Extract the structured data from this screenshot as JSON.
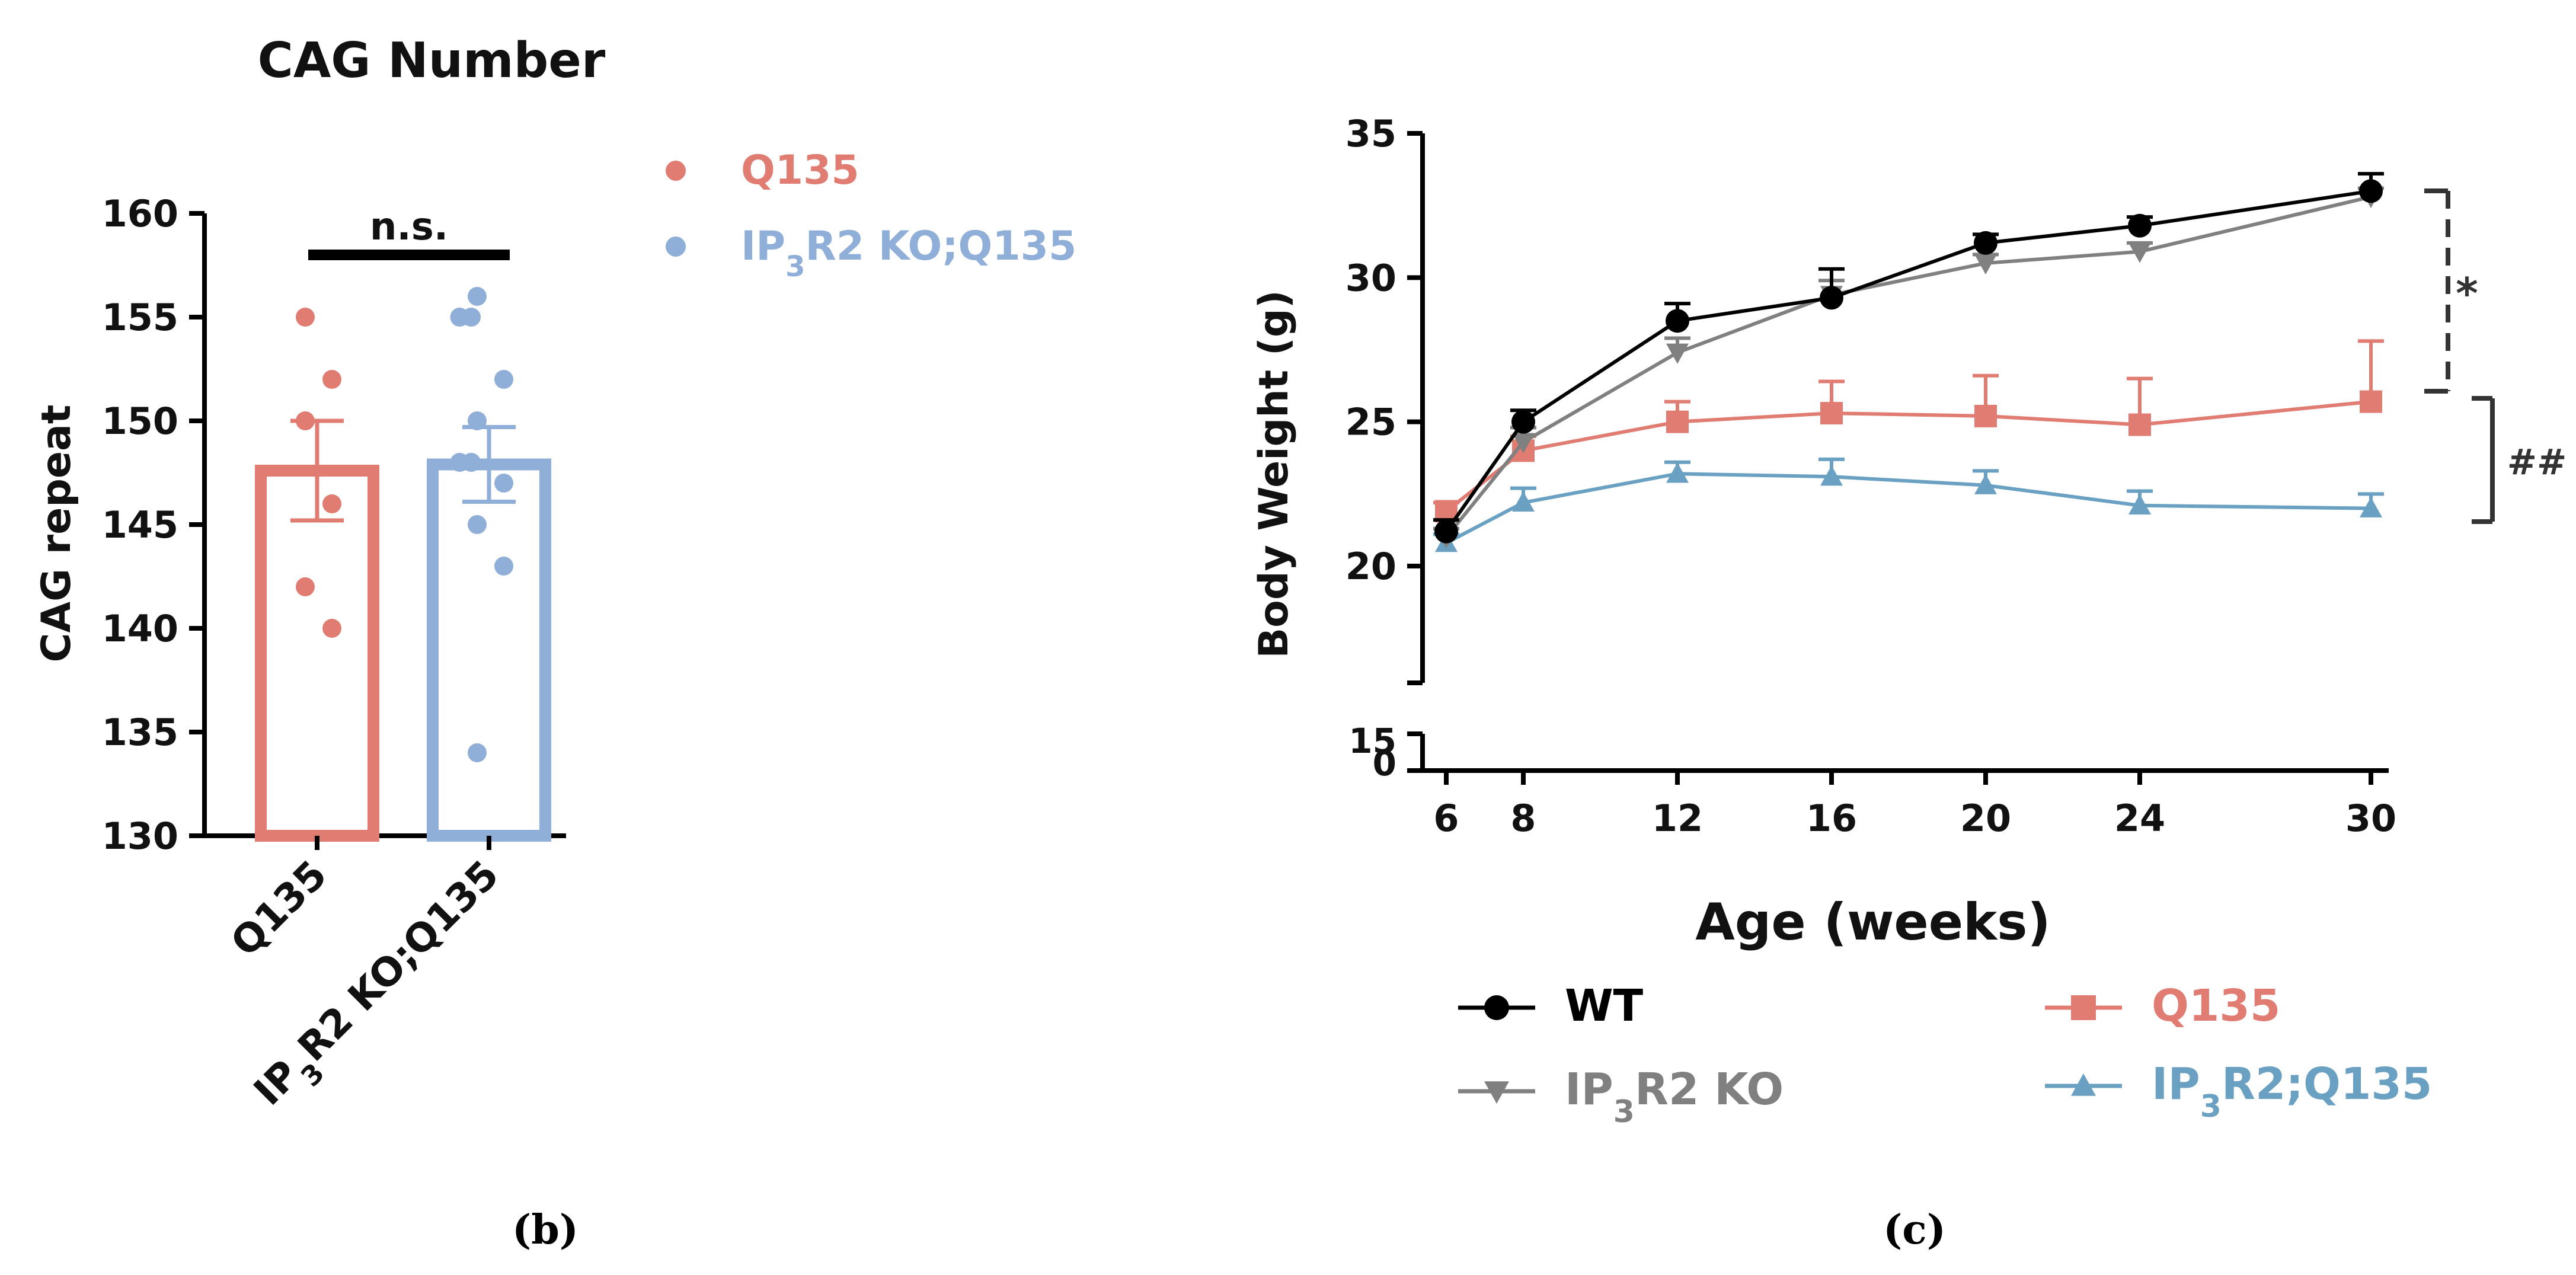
{
  "chart_data": [
    {
      "type": "bar",
      "panel_label": "(b)",
      "title": "CAG Number",
      "xlabel": "",
      "ylabel": "CAG repeat",
      "ylim": [
        130,
        160
      ],
      "yticks": [
        130,
        135,
        140,
        145,
        150,
        155,
        160
      ],
      "categories": [
        "Q135",
        "IP3R2 KO;Q135"
      ],
      "category_labels": [
        {
          "main": "Q135"
        },
        {
          "pre": "IP",
          "sub": "3",
          "post": "R2 KO;Q135"
        }
      ],
      "series": [
        {
          "name": "Q135",
          "color": "#E17C72",
          "mean": 147.6,
          "sem": 2.4,
          "points": [
            155,
            152,
            150,
            146,
            142,
            140
          ]
        },
        {
          "name": "IP3R2 KO;Q135",
          "color": "#8FAFD8",
          "mean": 147.9,
          "sem": 1.8,
          "points": [
            156,
            155,
            155,
            152,
            150,
            148,
            148,
            147,
            145,
            143,
            134
          ]
        }
      ],
      "legend": [
        {
          "pre": "Q135",
          "sub": "",
          "post": "",
          "color": "#E17C72"
        },
        {
          "pre": "IP",
          "sub": "3",
          "post": "R2 KO;Q135",
          "color": "#8FAFD8"
        }
      ],
      "legend_position": "right",
      "annotation": "n.s."
    },
    {
      "type": "line",
      "panel_label": "(c)",
      "title": "",
      "xlabel": "Age (weeks)",
      "ylabel": "Body Weight  (g)",
      "x": [
        6,
        8,
        12,
        16,
        20,
        24,
        30
      ],
      "xticks": [
        6,
        8,
        12,
        16,
        20,
        24,
        30
      ],
      "ylim": [
        0,
        35
      ],
      "yticks_upper": [
        20,
        25,
        30,
        35
      ],
      "yticks_lower": [
        0,
        15
      ],
      "series": [
        {
          "name": "WT",
          "pre": "WT",
          "sub": "",
          "post": "",
          "color": "#000000",
          "marker": "circle",
          "values": [
            21.2,
            25.0,
            28.5,
            29.3,
            31.2,
            31.8,
            33.0
          ],
          "errors": [
            0.4,
            0.4,
            0.6,
            1.0,
            0.3,
            0.3,
            0.6
          ]
        },
        {
          "name": "IP3R2 KO",
          "pre": "IP",
          "sub": "3",
          "post": "R2 KO",
          "color": "#808080",
          "marker": "triangle-down",
          "values": [
            21.0,
            24.3,
            27.4,
            29.4,
            30.5,
            30.9,
            32.8
          ],
          "errors": [
            0.3,
            0.5,
            0.5,
            0.5,
            0.3,
            0.3,
            0.3
          ]
        },
        {
          "name": "Q135",
          "pre": "Q135",
          "sub": "",
          "post": "",
          "color": "#E17C72",
          "marker": "square",
          "values": [
            21.9,
            24.0,
            25.0,
            25.3,
            25.2,
            24.9,
            25.7
          ],
          "errors": [
            0.3,
            0.5,
            0.7,
            1.1,
            1.4,
            1.6,
            2.1
          ]
        },
        {
          "name": "IP3R2;Q135",
          "pre": "IP",
          "sub": "3",
          "post": "R2;Q135",
          "color": "#6AA1C2",
          "marker": "triangle-up",
          "values": [
            20.8,
            22.2,
            23.2,
            23.1,
            22.8,
            22.1,
            22.0
          ],
          "errors": [
            0.3,
            0.5,
            0.4,
            0.6,
            0.5,
            0.5,
            0.5
          ]
        }
      ],
      "annotations": [
        "*",
        "##"
      ],
      "legend_position": "bottom"
    }
  ]
}
